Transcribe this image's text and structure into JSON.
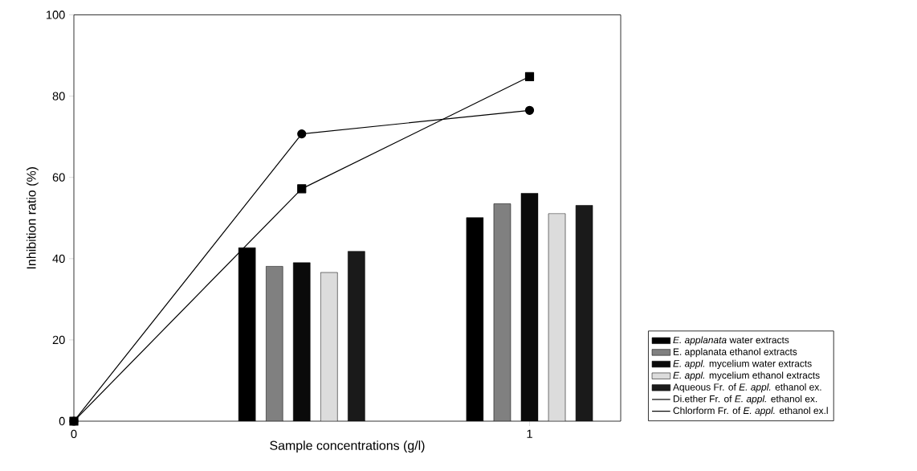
{
  "chart_data": {
    "type": "bar",
    "xlabel": "Sample concentrations (g/l)",
    "ylabel": "Inhibition ratio (%)",
    "xlim": [
      0,
      1.2
    ],
    "ylim": [
      0,
      100
    ],
    "xticks": [
      0,
      1
    ],
    "yticks": [
      0,
      20,
      40,
      60,
      80,
      100
    ],
    "legend": "right",
    "series": [
      {
        "name": "*E. applanata* water extracts",
        "color": "#000000",
        "x": [
          0.38,
          0.88
        ],
        "values": [
          42.7,
          50.1
        ]
      },
      {
        "name": "E. applanata ethanol extracts",
        "color": "#808080",
        "x": [
          0.44,
          0.94
        ],
        "values": [
          38.1,
          53.5
        ]
      },
      {
        "name": "*E. appl.* mycelium water extracts",
        "color": "#0a0a0a",
        "x": [
          0.5,
          1
        ],
        "values": [
          39.0,
          56.1
        ]
      },
      {
        "name": "*E. appl.* mycelium ethanol extracts",
        "color": "#dcdcdc",
        "x": [
          0.56,
          1.06
        ],
        "values": [
          36.6,
          51.1
        ]
      },
      {
        "name": "Aqueous Fr. of *E. appl.* ethanol ex.",
        "color": "#1a1a1a",
        "x": [
          0.62,
          1.12
        ],
        "values": [
          41.8,
          53.1
        ]
      },
      {
        "name": "Di.ether Fr. of *E. appl.* ethanol ex.",
        "type": "line",
        "marker": "circle",
        "color": "#000000",
        "x": [
          0,
          0.5,
          1
        ],
        "values": [
          0,
          70.7,
          76.5
        ]
      },
      {
        "name": "Chlorform Fr. of *E. appl.* ethanol ex.l",
        "type": "line",
        "marker": "square",
        "color": "#000000",
        "x": [
          0,
          0.5,
          1
        ],
        "values": [
          0,
          57.2,
          84.8
        ]
      }
    ]
  }
}
